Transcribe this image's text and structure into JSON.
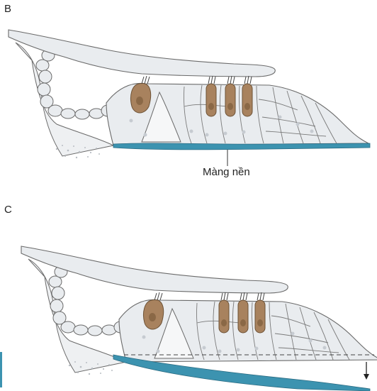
{
  "panels": {
    "b": {
      "letter": "B",
      "callout": "Màng nền"
    },
    "c": {
      "letter": "C"
    }
  },
  "colors": {
    "tissue_fill": "#e9ecef",
    "outline": "#5a5a5a",
    "hair_cell": "#a8825e",
    "hair_cell_nucleus": "#8a6846",
    "basilar_membrane": "#3c93b0",
    "background": "#ffffff"
  },
  "icons": {
    "arrow": "down-arrow-icon"
  }
}
